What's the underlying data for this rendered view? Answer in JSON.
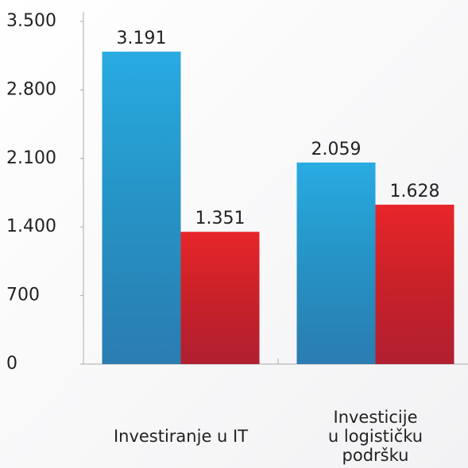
{
  "chart_data": {
    "type": "bar",
    "categories": [
      "Investiranje u IT",
      "Investicije\nu logističku\npodršku"
    ],
    "series": [
      {
        "color": "#29abe2",
        "values": [
          3191,
          2059
        ],
        "value_labels": [
          "3.191",
          "2.059"
        ]
      },
      {
        "color": "#e8262b",
        "values": [
          1351,
          1628
        ],
        "value_labels": [
          "1.351",
          "1.628"
        ]
      }
    ],
    "ylim": [
      0,
      3500
    ],
    "yticks": [
      0,
      700,
      {
        "value": 1400,
        "label": "1.400"
      },
      {
        "value": 2100,
        "label": "2.100"
      },
      {
        "value": 2800,
        "label": "2.800"
      },
      {
        "value": 3500,
        "label": "3.500"
      }
    ],
    "grid": false
  }
}
